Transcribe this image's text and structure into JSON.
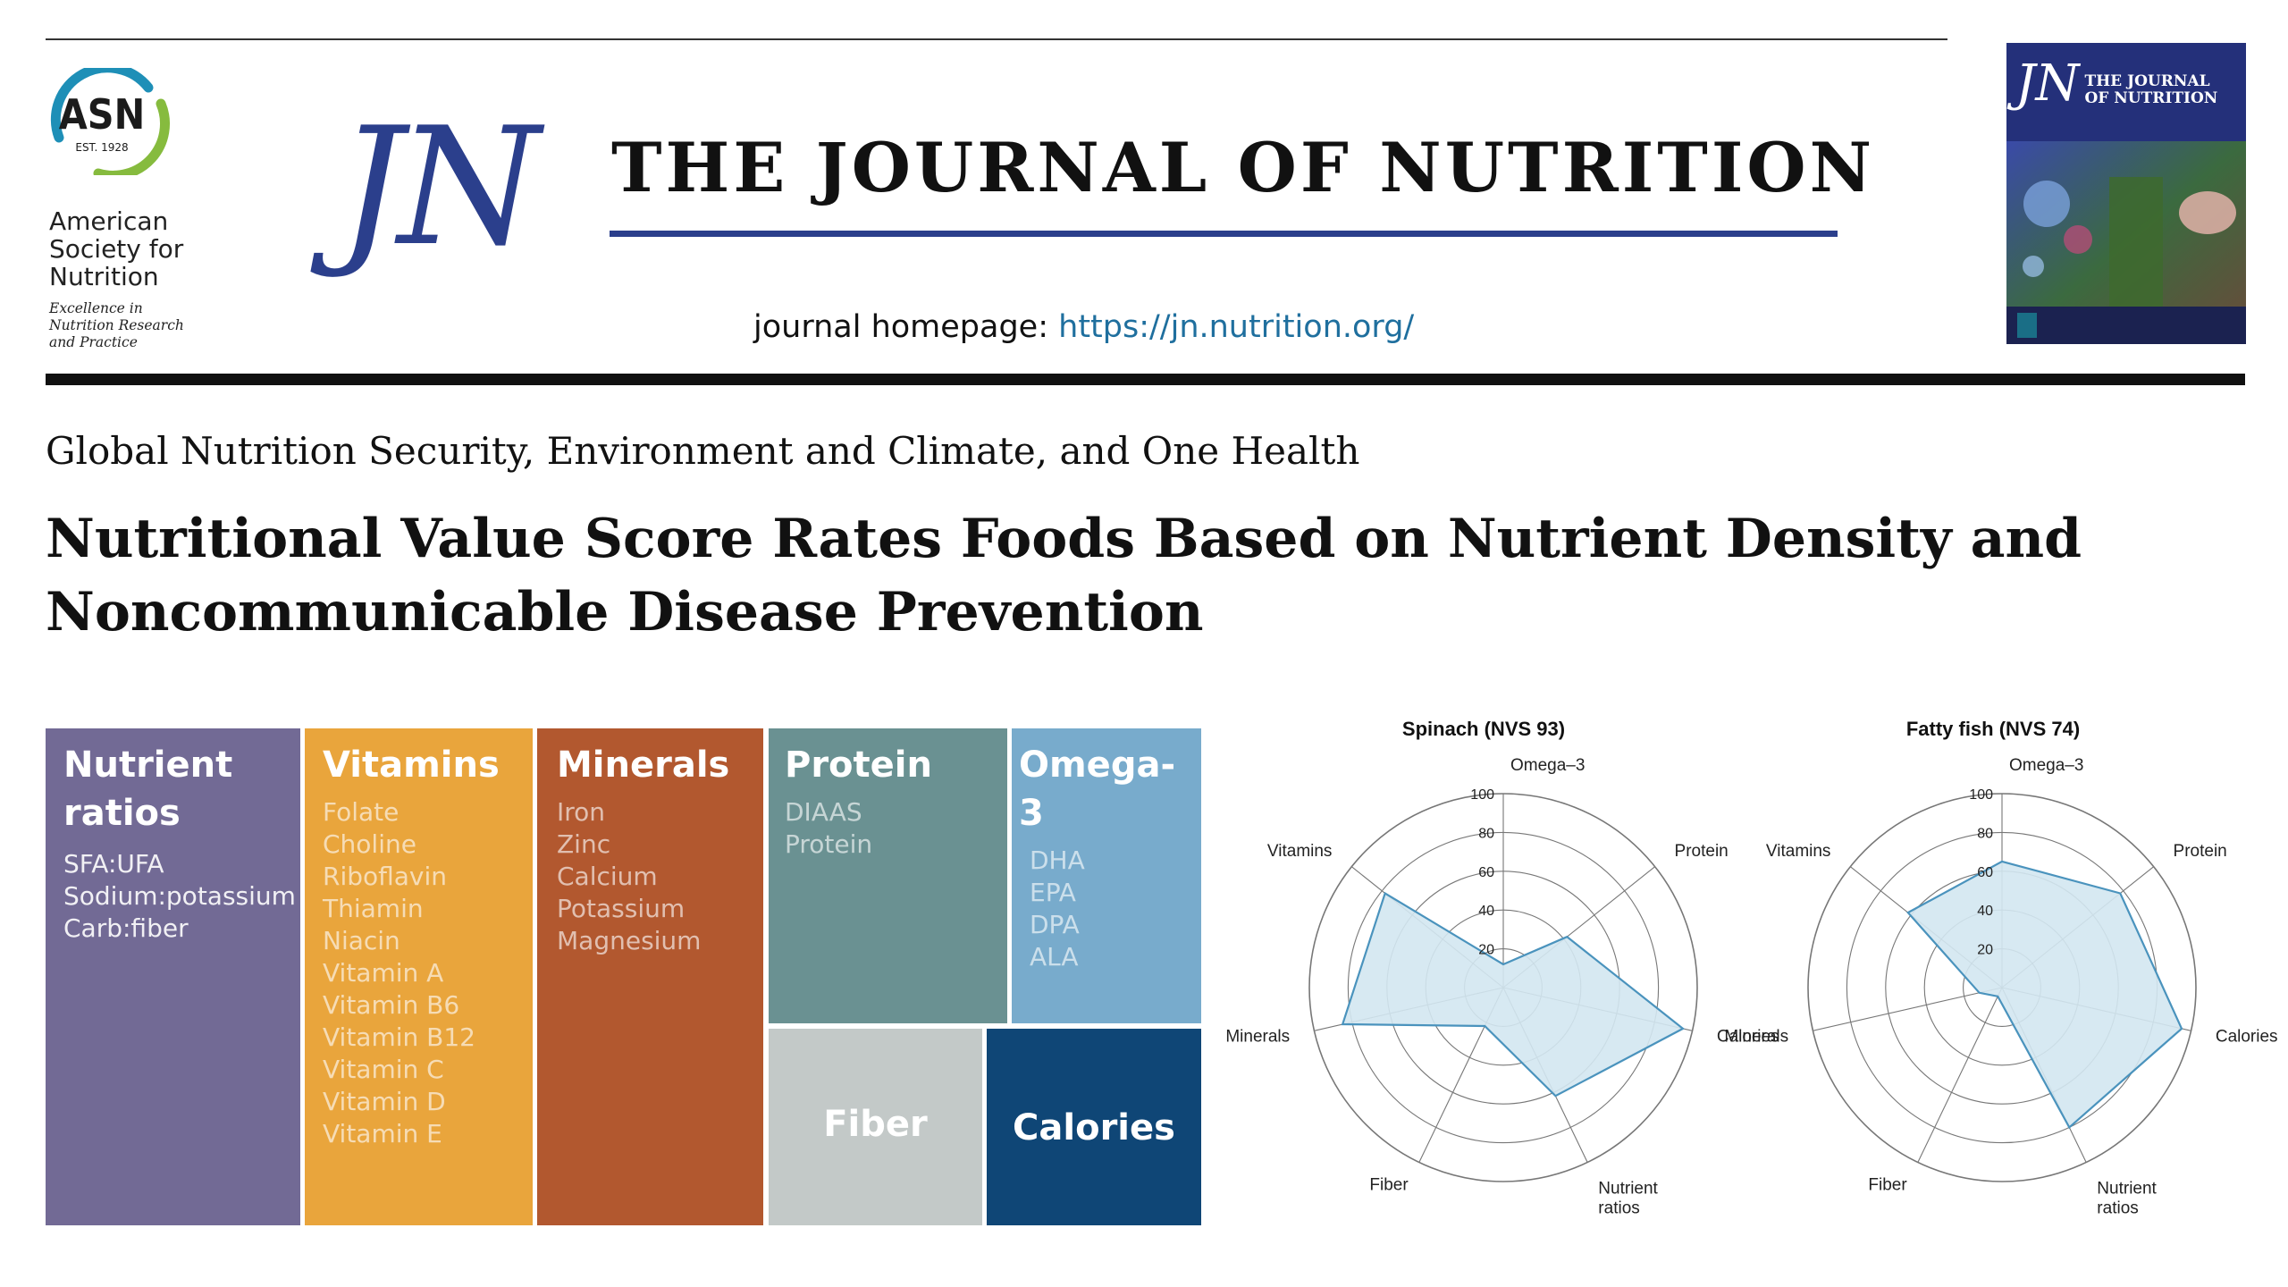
{
  "header": {
    "asn_logo_text": "ASN",
    "asn_est": "EST. 1928",
    "society_name": [
      "American",
      "Society for",
      "Nutrition"
    ],
    "society_tagline": [
      "Excellence in",
      "Nutrition Research",
      "and Practice"
    ],
    "monogram": "JN",
    "journal_title": "THE JOURNAL OF NUTRITION",
    "homepage_label": "journal homepage: ",
    "homepage_url": "https://jn.nutrition.org/",
    "cover": {
      "monogram": "JN",
      "title_line1": "THE JOURNAL",
      "title_line2": "OF NUTRITION"
    },
    "colors": {
      "brand_blue": "#2b3f8c",
      "link": "#1f6f9e"
    }
  },
  "article": {
    "section": "Global Nutrition Security, Environment and Climate, and One Health",
    "title_lines": [
      "Nutritional Value Score Rates Foods Based on Nutrient Density and",
      "Noncommunicable Disease Prevention"
    ]
  },
  "treemap": {
    "tiles": [
      {
        "id": "ratios",
        "title": [
          "Nutrient",
          "ratios"
        ],
        "items": [
          "SFA:UFA",
          "Sodium:potassium",
          "Carb:fiber"
        ],
        "color": "#726a95"
      },
      {
        "id": "vitamins",
        "title": [
          "Vitamins"
        ],
        "items": [
          "Folate",
          "Choline",
          "Riboflavin",
          "Thiamin",
          "Niacin",
          "Vitamin A",
          "Vitamin B6",
          "Vitamin B12",
          "Vitamin C",
          "Vitamin D",
          "Vitamin E"
        ],
        "color": "#e9a53c"
      },
      {
        "id": "minerals",
        "title": [
          "Minerals"
        ],
        "items": [
          "Iron",
          "Zinc",
          "Calcium",
          "Potassium",
          "Magnesium"
        ],
        "color": "#b2582f"
      },
      {
        "id": "protein",
        "title": [
          "Protein"
        ],
        "items": [
          "DIAAS",
          "Protein"
        ],
        "color": "#6a9192"
      },
      {
        "id": "omega3",
        "title": [
          "Omega-3"
        ],
        "items": [
          "DHA",
          "EPA",
          "DPA",
          "ALA"
        ],
        "color": "#78abcc"
      },
      {
        "id": "fiber",
        "title": [
          "Fiber"
        ],
        "items": [],
        "color": "#c3c9c8"
      },
      {
        "id": "calories",
        "title": [
          "Calories"
        ],
        "items": [],
        "color": "#0f4676"
      }
    ]
  },
  "chart_data": [
    {
      "type": "radar",
      "title": "Spinach (NVS 93)",
      "axes": [
        "Omega–3",
        "Protein",
        "Calories",
        "Nutrient ratios",
        "Fiber",
        "Minerals",
        "Vitamins"
      ],
      "values": [
        12,
        42,
        95,
        62,
        22,
        85,
        78
      ],
      "rlim": [
        0,
        100
      ],
      "ticks": [
        20,
        40,
        60,
        80,
        100
      ],
      "fill": "#d3e7f1",
      "stroke": "#4a93bd"
    },
    {
      "type": "radar",
      "title": "Fatty fish (NVS 74)",
      "axes": [
        "Omega–3",
        "Protein",
        "Calories",
        "Nutrient ratios",
        "Fiber",
        "Minerals",
        "Vitamins"
      ],
      "values": [
        65,
        78,
        95,
        80,
        5,
        12,
        62
      ],
      "rlim": [
        0,
        100
      ],
      "ticks": [
        20,
        40,
        60,
        80,
        100
      ],
      "fill": "#d3e7f1",
      "stroke": "#4a93bd"
    }
  ]
}
